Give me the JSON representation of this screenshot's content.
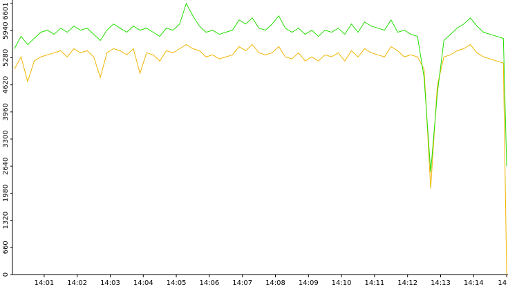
{
  "chart_data": {
    "type": "line",
    "x": [
      0.1,
      0.3,
      0.5,
      0.7,
      0.9,
      1.1,
      1.3,
      1.5,
      1.7,
      1.9,
      2.1,
      2.3,
      2.5,
      2.7,
      2.9,
      3.1,
      3.3,
      3.5,
      3.7,
      3.9,
      4.1,
      4.3,
      4.5,
      4.7,
      4.9,
      5.1,
      5.3,
      5.5,
      5.7,
      5.9,
      6.1,
      6.3,
      6.5,
      6.7,
      6.9,
      7.1,
      7.3,
      7.5,
      7.7,
      7.9,
      8.1,
      8.3,
      8.5,
      8.7,
      8.9,
      9.1,
      9.3,
      9.5,
      9.7,
      9.9,
      10.1,
      10.3,
      10.5,
      10.7,
      10.9,
      11.1,
      11.3,
      11.5,
      11.7,
      11.9,
      12.1,
      12.3,
      12.5,
      12.7,
      12.9,
      13.1,
      13.3,
      13.5,
      13.7,
      13.9,
      14.1,
      14.3,
      14.5,
      14.7,
      14.9,
      15.0
    ],
    "series": [
      {
        "color": "#f0b400",
        "values": [
          5000,
          5300,
          4700,
          5200,
          5300,
          5350,
          5400,
          5450,
          5300,
          5500,
          5400,
          5450,
          5300,
          4800,
          5400,
          5500,
          5450,
          5350,
          5500,
          4900,
          5400,
          5350,
          5200,
          5450,
          5400,
          5500,
          5600,
          5500,
          5450,
          5300,
          5350,
          5250,
          5300,
          5350,
          5550,
          5450,
          5600,
          5400,
          5350,
          5400,
          5550,
          5300,
          5250,
          5400,
          5200,
          5300,
          5200,
          5350,
          5300,
          5400,
          5200,
          5450,
          5300,
          5500,
          5400,
          5350,
          5300,
          5550,
          5450,
          5300,
          5350,
          5300,
          5000,
          2100,
          4600,
          5300,
          5350,
          5450,
          5500,
          5600,
          5400,
          5300,
          5250,
          5200,
          5150,
          0
        ]
      },
      {
        "color": "#22dd00",
        "values": [
          5500,
          5800,
          5600,
          5750,
          5900,
          5950,
          5850,
          6000,
          5900,
          6050,
          5950,
          6000,
          5850,
          5700,
          5950,
          6100,
          6000,
          5900,
          6050,
          5950,
          6000,
          5900,
          5800,
          6000,
          5950,
          6100,
          6601,
          6300,
          6050,
          5900,
          5950,
          5850,
          5900,
          5950,
          6200,
          6100,
          6250,
          6000,
          5950,
          6100,
          6300,
          6000,
          5900,
          6000,
          5850,
          5950,
          5800,
          5950,
          5900,
          6000,
          5850,
          6100,
          5900,
          6150,
          6050,
          6000,
          5950,
          6200,
          5900,
          5950,
          5850,
          5800,
          4800,
          2500,
          4400,
          5700,
          5850,
          6000,
          6100,
          6250,
          6050,
          5900,
          5850,
          5800,
          5750,
          2640
        ]
      }
    ],
    "xlim": [
      0.04,
      15.04
    ],
    "xticks": [
      {
        "value": 1,
        "label": "14:01"
      },
      {
        "value": 2,
        "label": "14:02"
      },
      {
        "value": 3,
        "label": "14:03"
      },
      {
        "value": 4,
        "label": "14:04"
      },
      {
        "value": 5,
        "label": "14:05"
      },
      {
        "value": 6,
        "label": "14:06"
      },
      {
        "value": 7,
        "label": "14:07"
      },
      {
        "value": 8,
        "label": "14:08"
      },
      {
        "value": 9,
        "label": "14:09"
      },
      {
        "value": 10,
        "label": "14:10"
      },
      {
        "value": 11,
        "label": "14:11"
      },
      {
        "value": 12,
        "label": "14:12"
      },
      {
        "value": 13,
        "label": "14:13"
      },
      {
        "value": 14,
        "label": "14:14"
      },
      {
        "value": 15,
        "label": "14"
      }
    ],
    "ylim": [
      0,
      6601
    ],
    "yticks": [
      0,
      660,
      1320,
      1980,
      2640,
      3300,
      3960,
      4620,
      5280,
      5940,
      6601
    ]
  }
}
